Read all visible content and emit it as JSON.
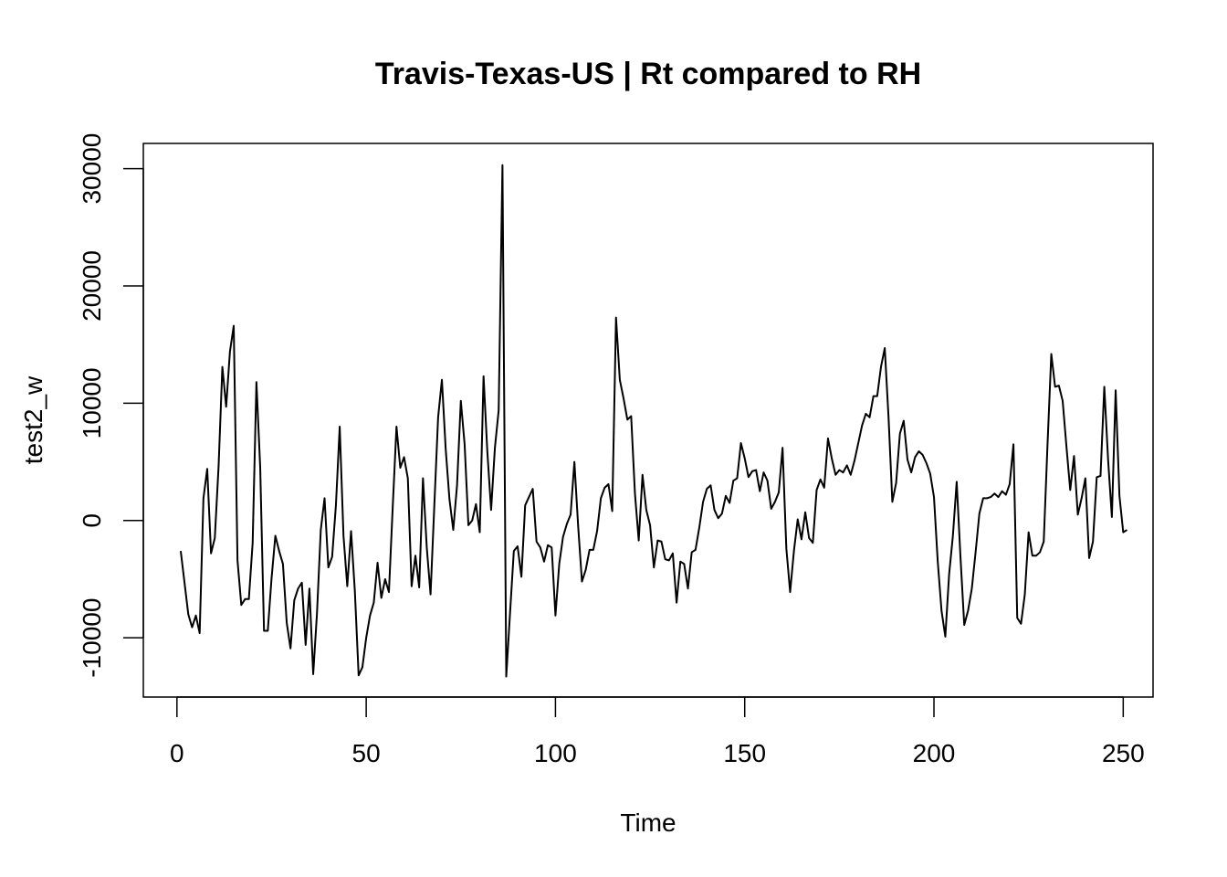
{
  "chart_data": {
    "type": "line",
    "title": "Travis-Texas-US | Rt compared to RH",
    "xlabel": "Time",
    "ylabel": "test2_w",
    "xlim": [
      1,
      248
    ],
    "ylim": [
      -13300,
      30400
    ],
    "x_ticks": [
      0,
      50,
      100,
      150,
      200,
      250
    ],
    "y_ticks": [
      -10000,
      0,
      10000,
      20000,
      30000
    ],
    "x_tick_labels": [
      "0",
      "50",
      "100",
      "150",
      "200",
      "250"
    ],
    "y_tick_labels": [
      "-10000",
      "0",
      "10000",
      "20000",
      "30000"
    ],
    "grid": false,
    "line_color": "#000000",
    "series": [
      {
        "x_start": 1,
        "values": [
          -2600,
          -5300,
          -8000,
          -9100,
          -8100,
          -9600,
          1900,
          4400,
          -2800,
          -1500,
          4600,
          13100,
          9700,
          14400,
          16600,
          -3400,
          -7200,
          -6700,
          -6700,
          -1900,
          11800,
          4500,
          -9400,
          -9400,
          -4900,
          -1300,
          -2600,
          -3700,
          -8700,
          -10900,
          -6800,
          -5800,
          -5300,
          -10600,
          -5800,
          -13100,
          -7900,
          -800,
          1900,
          -4000,
          -3100,
          1300,
          8000,
          -1300,
          -5600,
          -900,
          -6000,
          -13200,
          -12500,
          -10000,
          -8100,
          -7000,
          -3600,
          -6600,
          -5000,
          -6100,
          1100,
          8000,
          4500,
          5400,
          3600,
          -5600,
          -3000,
          -5700,
          3600,
          -2300,
          -6300,
          1300,
          8800,
          12000,
          6100,
          1800,
          -800,
          3000,
          10200,
          6500,
          -400,
          0,
          1400,
          -1000,
          12300,
          5900,
          900,
          6200,
          9400,
          30300,
          -13300,
          -7900,
          -2600,
          -2200,
          -4800,
          1300,
          2000,
          2700,
          -1800,
          -2300,
          -3500,
          -2100,
          -2300,
          -8100,
          -3700,
          -1400,
          -300,
          500,
          5000,
          -500,
          -5200,
          -4200,
          -2500,
          -2500,
          -900,
          1900,
          2800,
          3100,
          800,
          17300,
          12000,
          10400,
          8600,
          8900,
          2300,
          -1700,
          3900,
          900,
          -400,
          -4000,
          -1700,
          -1800,
          -3300,
          -3400,
          -2800,
          -7000,
          -3500,
          -3700,
          -5800,
          -2700,
          -2500,
          -600,
          1600,
          2700,
          3000,
          900,
          200,
          600,
          2100,
          1500,
          3400,
          3600,
          6600,
          5300,
          3700,
          4200,
          4300,
          2500,
          4100,
          3400,
          1000,
          1600,
          2400,
          6200,
          -2400,
          -6100,
          -2600,
          100,
          -1600,
          700,
          -1500,
          -1900,
          2600,
          3500,
          2800,
          7000,
          5300,
          3900,
          4300,
          4100,
          4700,
          3900,
          5100,
          6600,
          8100,
          9100,
          8800,
          10600,
          10600,
          13100,
          14700,
          8800,
          1600,
          3200,
          7400,
          8500,
          5200,
          4100,
          5400,
          5900,
          5600,
          4900,
          4000,
          2000,
          -3500,
          -7700,
          -9900,
          -4600,
          -1300,
          3300,
          -3100,
          -8900,
          -7700,
          -5800,
          -2700,
          600,
          1900,
          1900,
          2000,
          2300,
          2000,
          2500,
          2200,
          3100,
          6500,
          -8300,
          -8800,
          -6300,
          -1000,
          -3000,
          -3000,
          -2700,
          -1800,
          6500,
          14200,
          11400,
          11500,
          10200,
          6300,
          2600,
          5500,
          500,
          1900,
          3600,
          -3200,
          -1800,
          3700,
          3800,
          11400,
          5200,
          300,
          11100,
          2100,
          -1000,
          -800
        ]
      }
    ]
  }
}
